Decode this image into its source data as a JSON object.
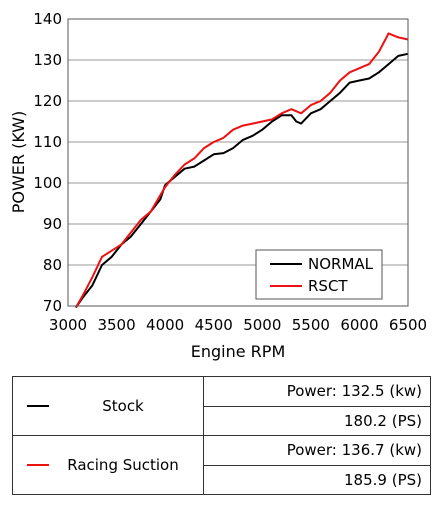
{
  "chart_data": {
    "type": "line",
    "xlabel": "Engine RPM",
    "ylabel": "POWER (KW)",
    "xlim": [
      3000,
      6500
    ],
    "ylim": [
      70,
      140
    ],
    "xticks": [
      "3000",
      "3500",
      "4000",
      "4500",
      "5000",
      "5500",
      "6000",
      "6500"
    ],
    "yticks": [
      "70",
      "80",
      "90",
      "100",
      "110",
      "120",
      "130",
      "140"
    ],
    "grid": "horizontal",
    "legend": "bottom-right",
    "series": [
      {
        "name": "NORMAL",
        "color": "#000000",
        "points": [
          [
            3080,
            69.6
          ],
          [
            3150,
            72
          ],
          [
            3250,
            75
          ],
          [
            3350,
            80
          ],
          [
            3450,
            82
          ],
          [
            3550,
            85
          ],
          [
            3650,
            87
          ],
          [
            3750,
            90
          ],
          [
            3850,
            93
          ],
          [
            3950,
            96
          ],
          [
            4000,
            99.5
          ],
          [
            4100,
            101.5
          ],
          [
            4200,
            103.5
          ],
          [
            4300,
            104
          ],
          [
            4400,
            105.5
          ],
          [
            4500,
            107
          ],
          [
            4600,
            107.3
          ],
          [
            4700,
            108.5
          ],
          [
            4800,
            110.5
          ],
          [
            4900,
            111.5
          ],
          [
            5000,
            113
          ],
          [
            5100,
            115
          ],
          [
            5200,
            116.5
          ],
          [
            5300,
            116.5
          ],
          [
            5350,
            115
          ],
          [
            5400,
            114.5
          ],
          [
            5500,
            117
          ],
          [
            5600,
            118
          ],
          [
            5700,
            120
          ],
          [
            5800,
            122
          ],
          [
            5900,
            124.5
          ],
          [
            6000,
            125
          ],
          [
            6100,
            125.5
          ],
          [
            6200,
            127
          ],
          [
            6300,
            129
          ],
          [
            6400,
            131
          ],
          [
            6500,
            131.5
          ]
        ]
      },
      {
        "name": "RSCT",
        "color": "#ee1111",
        "points": [
          [
            3080,
            69.6
          ],
          [
            3150,
            72.5
          ],
          [
            3250,
            77
          ],
          [
            3350,
            82
          ],
          [
            3450,
            83.5
          ],
          [
            3550,
            85
          ],
          [
            3650,
            88
          ],
          [
            3750,
            91
          ],
          [
            3850,
            93
          ],
          [
            3950,
            97
          ],
          [
            4000,
            99
          ],
          [
            4100,
            102
          ],
          [
            4200,
            104.5
          ],
          [
            4300,
            106
          ],
          [
            4400,
            108.5
          ],
          [
            4500,
            110
          ],
          [
            4600,
            111
          ],
          [
            4700,
            113
          ],
          [
            4800,
            114
          ],
          [
            4900,
            114.5
          ],
          [
            5000,
            115
          ],
          [
            5100,
            115.5
          ],
          [
            5200,
            117
          ],
          [
            5300,
            118
          ],
          [
            5400,
            117
          ],
          [
            5500,
            119
          ],
          [
            5600,
            120
          ],
          [
            5700,
            122
          ],
          [
            5800,
            125
          ],
          [
            5900,
            127
          ],
          [
            6000,
            128
          ],
          [
            6100,
            129
          ],
          [
            6200,
            132
          ],
          [
            6300,
            136.5
          ],
          [
            6400,
            135.5
          ],
          [
            6500,
            135
          ]
        ]
      }
    ]
  },
  "legend": {
    "items": [
      {
        "label": "NORMAL",
        "color": "#000000"
      },
      {
        "label": "RSCT",
        "color": "#ee1111"
      }
    ]
  },
  "summary": {
    "rows": [
      {
        "name": "Stock",
        "color": "#000000",
        "power_kw": "Power: 132.5 (kw)",
        "power_ps": "180.2 (PS)"
      },
      {
        "name": "Racing Suction",
        "color": "#ee1111",
        "power_kw": "Power: 136.7 (kw)",
        "power_ps": "185.9 (PS)"
      }
    ]
  }
}
